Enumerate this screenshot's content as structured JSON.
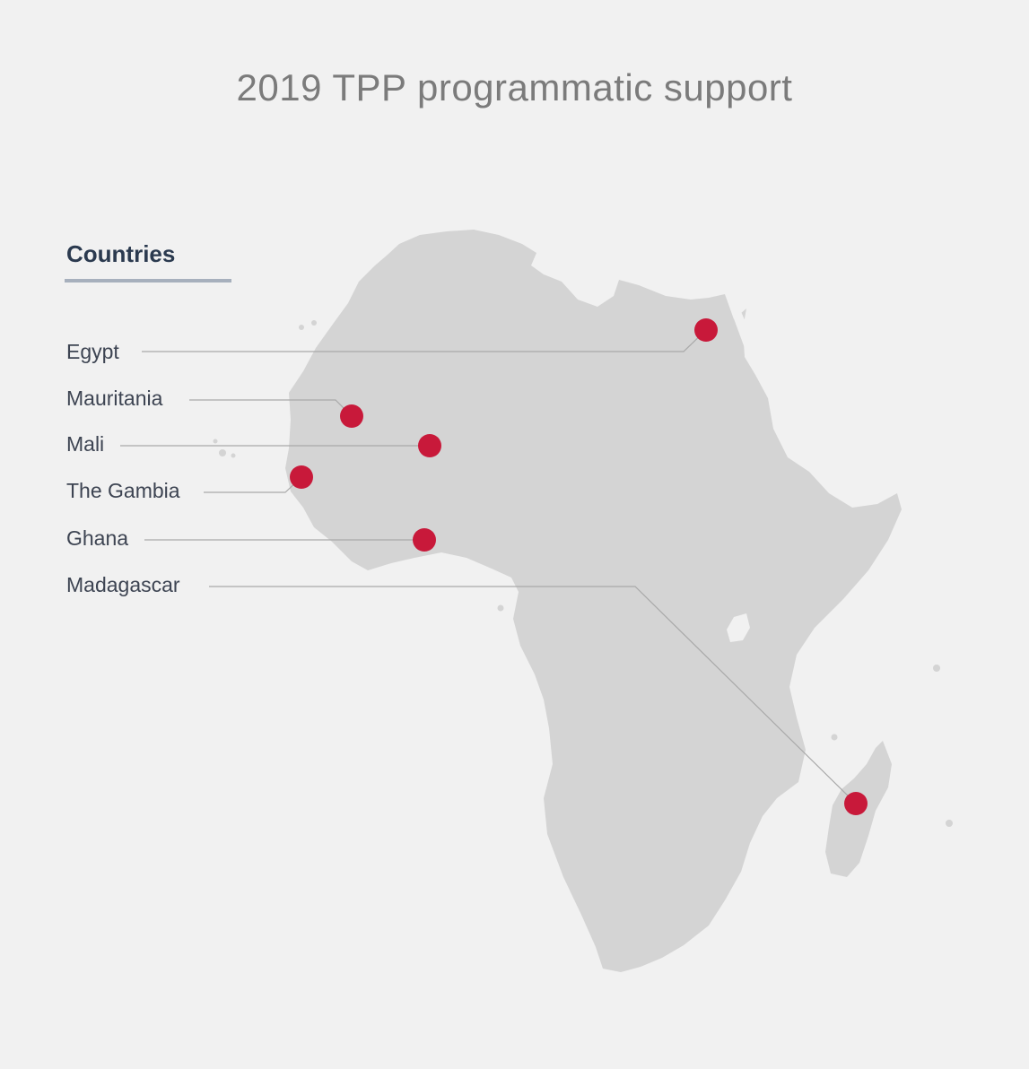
{
  "title": "2019 TPP programmatic support",
  "legend": {
    "heading": "Countries",
    "countries": [
      {
        "label": "Egypt"
      },
      {
        "label": "Mauritania"
      },
      {
        "label": "Mali"
      },
      {
        "label": "The Gambia"
      },
      {
        "label": "Ghana"
      },
      {
        "label": "Madagascar"
      }
    ]
  },
  "colors": {
    "background": "#f1f1f1",
    "land": "#d4d4d4",
    "marker": "#c8193a",
    "leader_line": "#a9a9a9",
    "title": "#7b7b7b",
    "legend_heading": "#2b3a4f",
    "legend_underline": "#a7b0bd"
  },
  "icons": [
    "map-marker-icon"
  ]
}
